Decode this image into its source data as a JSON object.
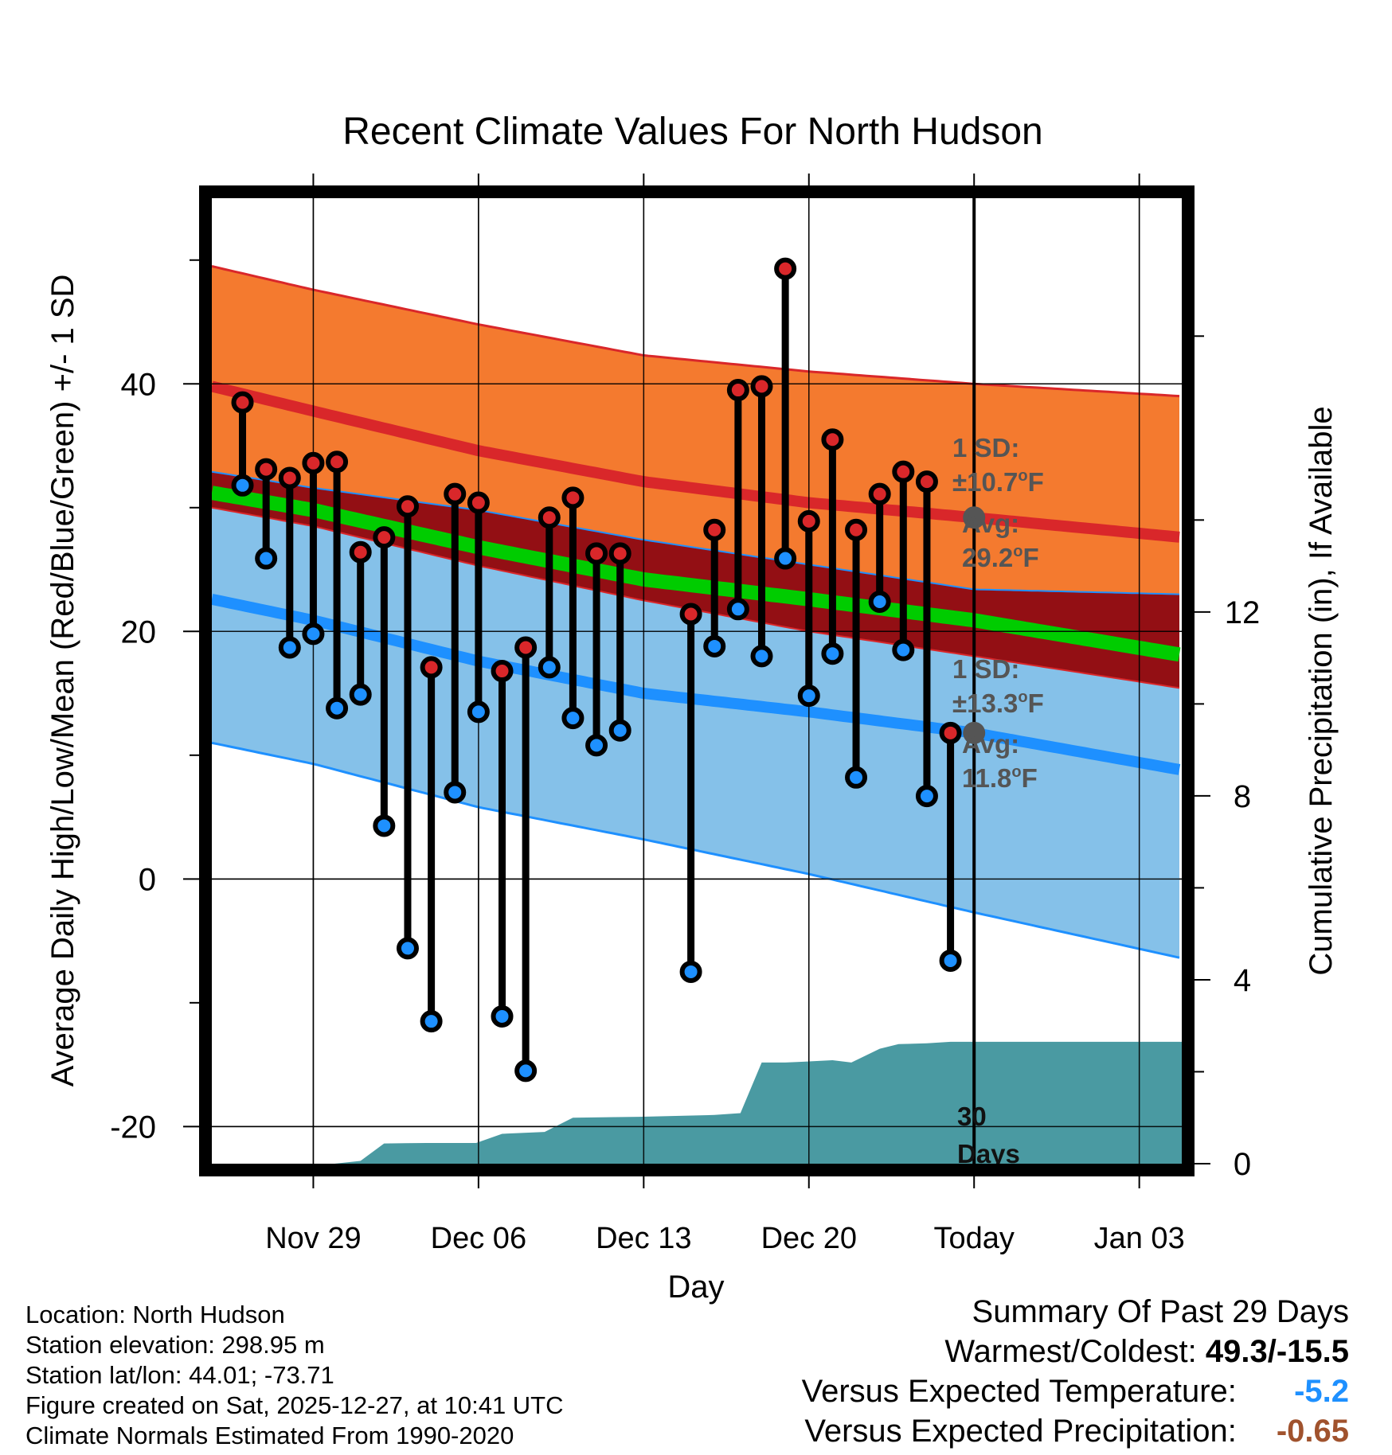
{
  "chart_data": {
    "type": "climate-range",
    "title": "Recent Climate Values For North Hudson",
    "xlabel": "Day",
    "ylabel_left": "Average Daily High/Low/Mean (Red/Blue/Green) +/- 1 SD",
    "ylabel_right": "Cumulative Precipitation (in), If Available",
    "x_range_days": [
      -32.3,
      8.8
    ],
    "ylim_left": [
      -23,
      55
    ],
    "ylim_right": [
      0,
      21
    ],
    "x_ticks": [
      {
        "day": -28,
        "label": "Nov 29"
      },
      {
        "day": -21,
        "label": "Dec 06"
      },
      {
        "day": -14,
        "label": "Dec 13"
      },
      {
        "day": -7,
        "label": "Dec 20"
      },
      {
        "day": 0,
        "label": "Today"
      },
      {
        "day": 7,
        "label": "Jan 03"
      }
    ],
    "y_ticks_left": [
      {
        "value": -20,
        "label": "-20"
      },
      {
        "value": 0,
        "label": "0"
      },
      {
        "value": 20,
        "label": "20"
      },
      {
        "value": 40,
        "label": "40"
      }
    ],
    "y_ticks_right": [
      {
        "value": 0,
        "label": "0"
      },
      {
        "value": 4,
        "label": "4"
      },
      {
        "value": 8,
        "label": "8"
      },
      {
        "value": 12,
        "label": "12"
      }
    ],
    "normal_high": {
      "x": [
        -32.3,
        -28,
        -21,
        -14,
        -7,
        0,
        8.8
      ],
      "mean": [
        39.8,
        37.8,
        34.6,
        32.1,
        30.4,
        29.2,
        27.6
      ],
      "upper": [
        49.5,
        47.6,
        44.8,
        42.3,
        41.0,
        40.0,
        39.0
      ],
      "lower": [
        32.9,
        31.6,
        29.8,
        27.4,
        25.4,
        23.4,
        23.0
      ]
    },
    "normal_low": {
      "x": [
        -32.3,
        -28,
        -21,
        -14,
        -7,
        0,
        8.8
      ],
      "mean": [
        22.6,
        20.9,
        17.6,
        15.0,
        13.5,
        11.8,
        8.8
      ],
      "upper": [
        30.0,
        28.5,
        25.3,
        22.5,
        20.0,
        18.0,
        15.4
      ],
      "lower": [
        11.0,
        9.3,
        5.8,
        3.2,
        0.4,
        -2.7,
        -6.4
      ]
    },
    "normal_mean": {
      "x": [
        -32.3,
        -28,
        -21,
        -14,
        -7,
        0,
        8.8
      ],
      "values": [
        31.2,
        29.8,
        26.8,
        24.2,
        22.6,
        20.9,
        18.1
      ]
    },
    "observations": {
      "day": [
        -31,
        -30,
        -29,
        -28,
        -27,
        -26,
        -25,
        -24,
        -23,
        -22,
        -21,
        -20,
        -19,
        -18,
        -17,
        -16,
        -15,
        -14,
        -12,
        -11,
        -10,
        -9,
        -8,
        -7,
        -6,
        -5,
        -4,
        -3,
        -2,
        -1
      ],
      "high": [
        38.5,
        33.1,
        32.4,
        33.6,
        33.7,
        26.4,
        27.6,
        30.1,
        17.1,
        31.1,
        30.4,
        16.8,
        18.7,
        29.2,
        30.8,
        26.3,
        26.3,
        null,
        21.4,
        28.2,
        39.5,
        39.8,
        49.3,
        28.9,
        35.5,
        28.2,
        31.1,
        32.9,
        32.1,
        11.8
      ],
      "low": [
        31.8,
        25.9,
        18.7,
        19.8,
        13.8,
        14.9,
        4.3,
        -5.6,
        -11.5,
        7.0,
        13.5,
        -11.1,
        -15.5,
        17.1,
        13.0,
        10.8,
        12.0,
        null,
        -7.5,
        18.8,
        21.8,
        18.0,
        25.9,
        14.8,
        18.2,
        8.2,
        22.4,
        18.5,
        6.7,
        -6.6
      ]
    },
    "precipitation": {
      "x": [
        -32.3,
        -27.1,
        -26,
        -25,
        -23.2,
        -21.1,
        -20,
        -18.2,
        -17,
        -14.2,
        -11,
        -9.9,
        -9,
        -8,
        -7.5,
        -6,
        -5.2,
        -4,
        -3.2,
        -2,
        -1,
        8.8
      ],
      "values": [
        0,
        0,
        0.06,
        0.44,
        0.45,
        0.45,
        0.65,
        0.69,
        1.0,
        1.02,
        1.06,
        1.1,
        2.2,
        2.2,
        2.21,
        2.25,
        2.2,
        2.5,
        2.6,
        2.62,
        2.65,
        2.65
      ]
    },
    "annotations": {
      "high_sd_label": "1 SD:",
      "high_sd_value": "±10.7",
      "high_avg_label": "Avg:",
      "high_avg_value": "29.2",
      "low_sd_label": "1 SD:",
      "low_sd_value": "±13.3",
      "low_avg_label": "Avg:",
      "low_avg_value": "11.8",
      "degree_unit": "F",
      "degree_symbol": "o",
      "days_label_line1": "30",
      "days_label_line2": "Days"
    }
  },
  "footer": {
    "location": "Location: North Hudson",
    "elevation": "Station elevation: 298.95 m",
    "latlon": "Station lat/lon: 44.01; -73.71",
    "created": "Figure created on Sat, 2025-12-27, at 10:41 UTC",
    "normals": "Climate Normals Estimated From 1990-2020"
  },
  "summary": {
    "title": "Summary Of Past 29 Days",
    "warmest_label": "Warmest/Coldest:",
    "warmest_value": "49.3/-15.5",
    "temp_label": "Versus Expected Temperature:",
    "temp_value": "-5.2",
    "precip_label": "Versus Expected Precipitation:",
    "precip_value": "-0.65"
  },
  "colors": {
    "high_band": "#f47a2f",
    "high_line": "#d9272a",
    "overlap_band": "#930f14",
    "mean_line": "#00cc00",
    "low_band": "#85c1e9",
    "low_line": "#1e90ff",
    "precip_fill": "#4a9aa2",
    "high_dot": "#d9272a",
    "low_dot": "#1e90ff",
    "annotation_gray": "#555555",
    "temp_value": "#1e90ff",
    "precip_value": "#a0522d"
  }
}
